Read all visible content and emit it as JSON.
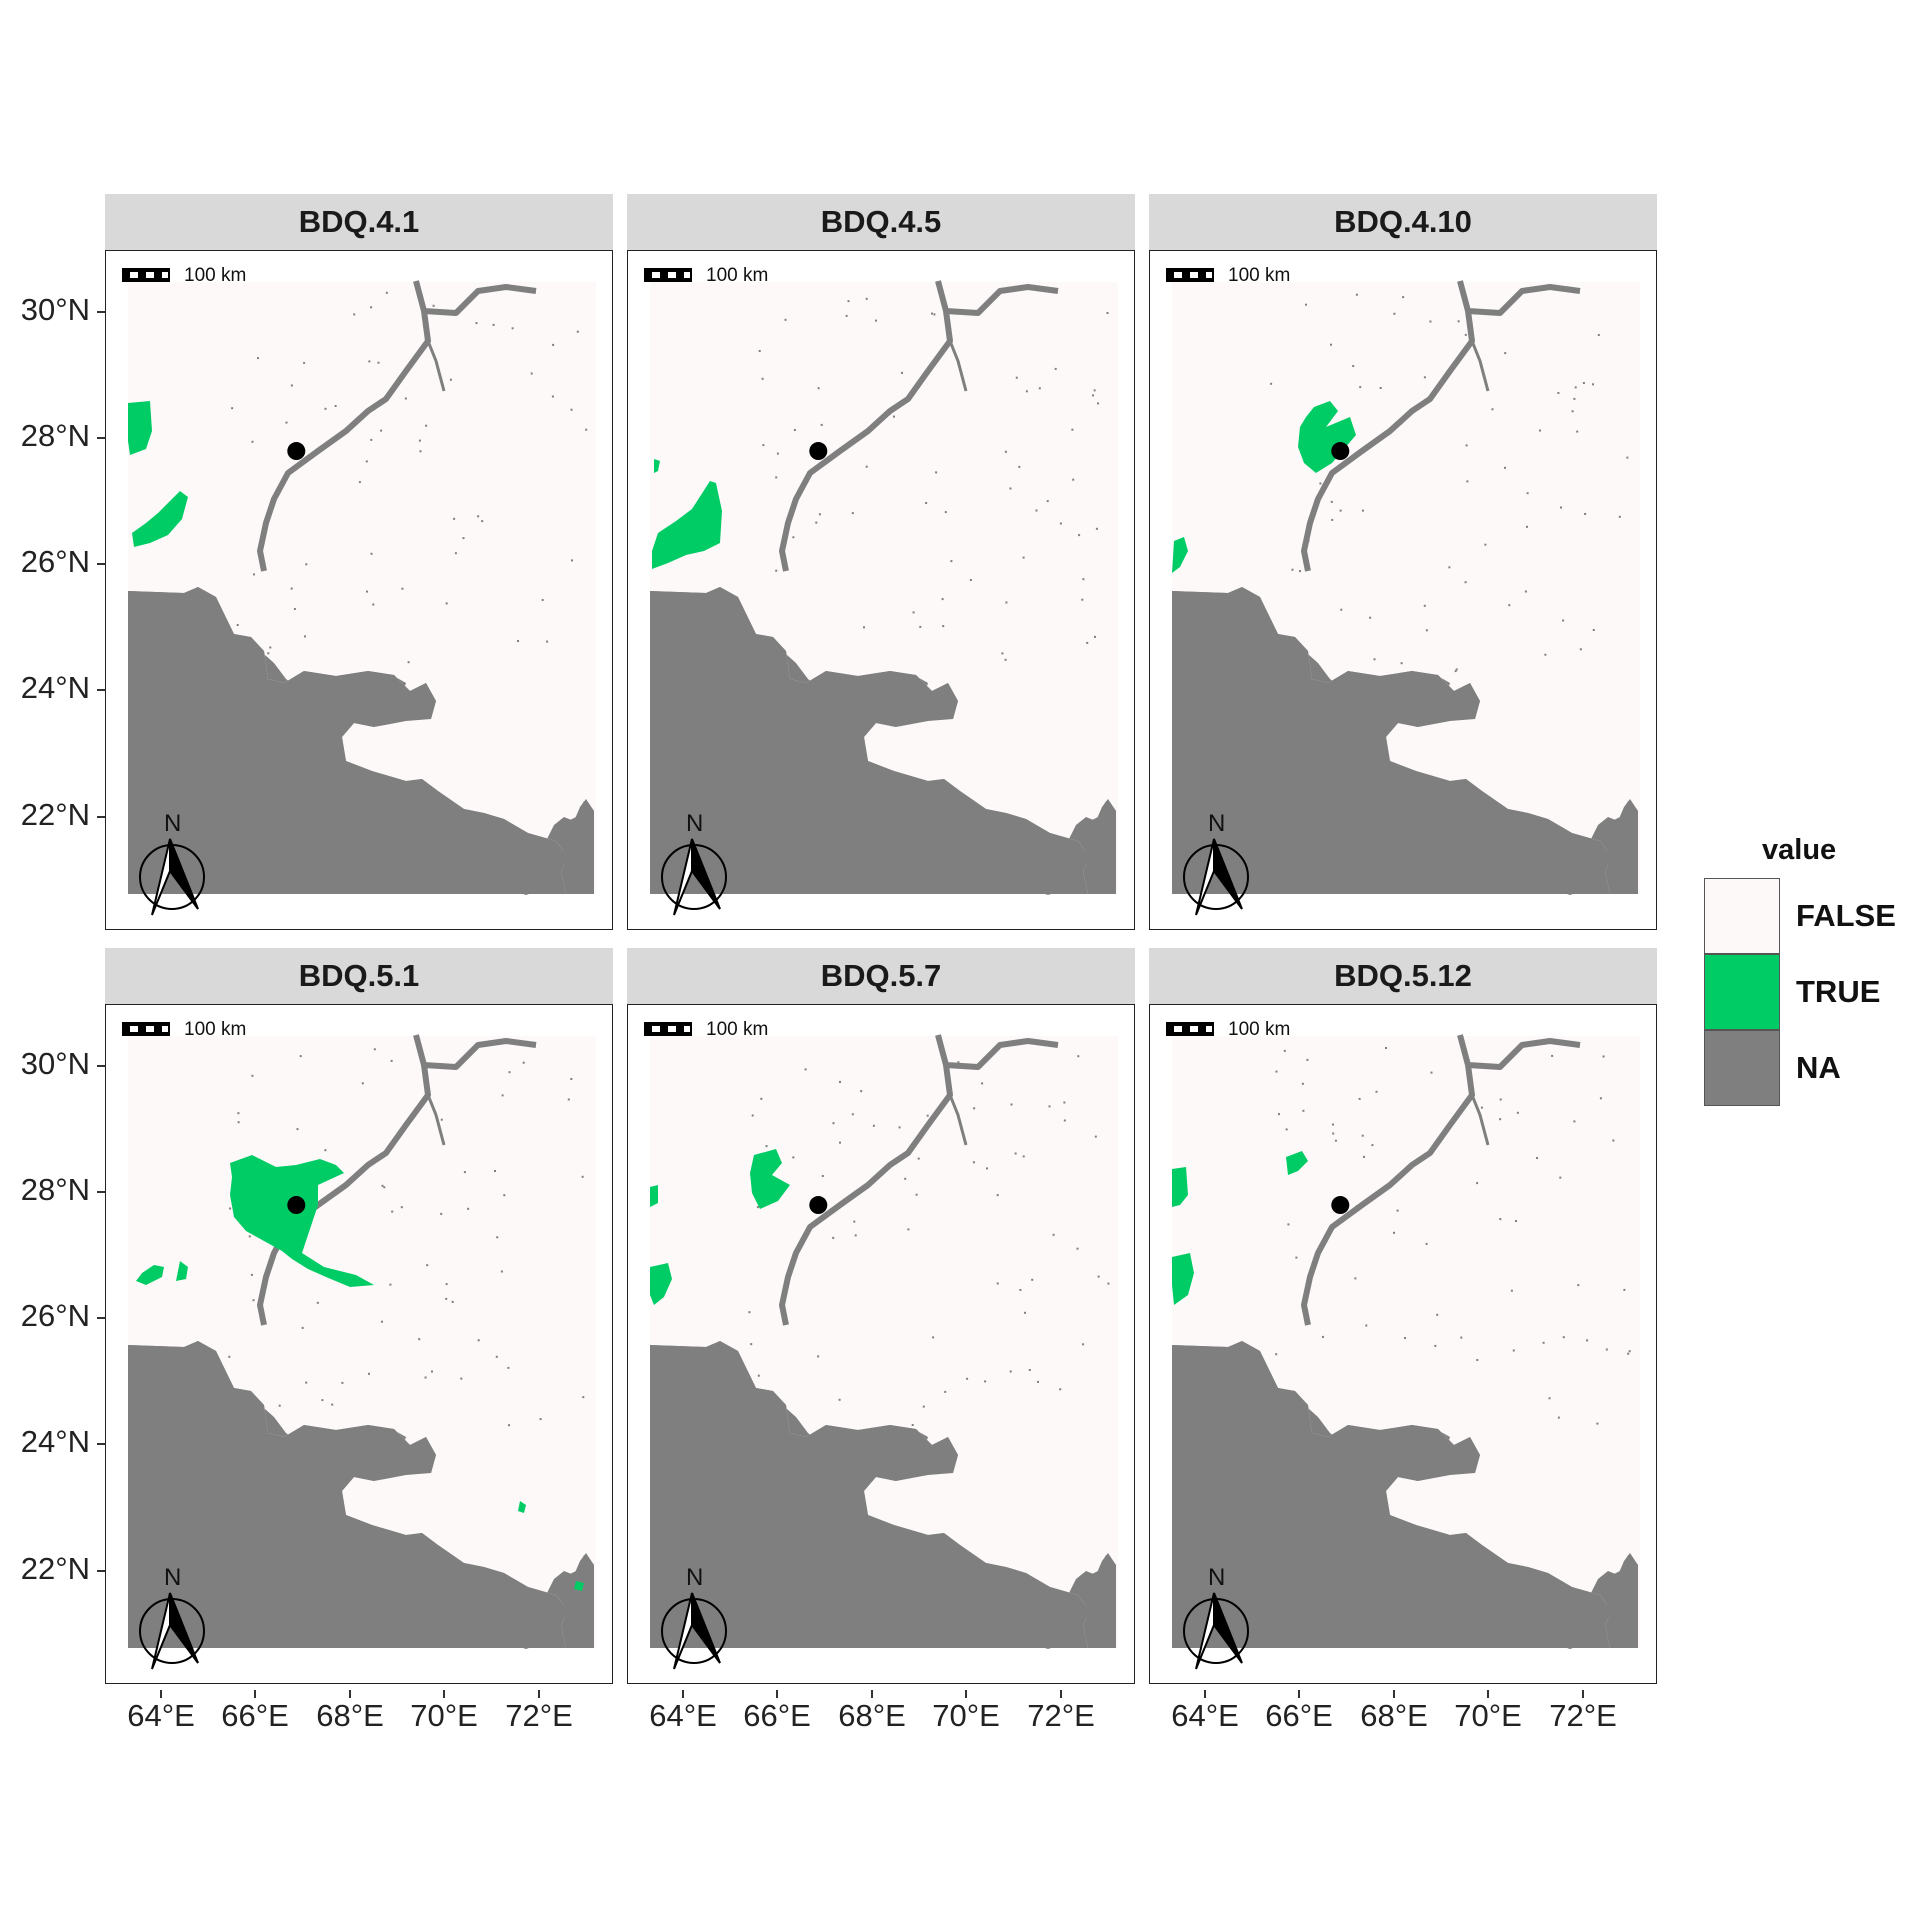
{
  "colors": {
    "false_fill": "#fcf9f8",
    "true_fill": "#00cc66",
    "na_fill": "#7f7f7f",
    "strip": "#d9d9d9"
  },
  "panels": [
    {
      "title": "BDQ.4.1"
    },
    {
      "title": "BDQ.4.5"
    },
    {
      "title": "BDQ.4.10"
    },
    {
      "title": "BDQ.5.1"
    },
    {
      "title": "BDQ.5.7"
    },
    {
      "title": "BDQ.5.12"
    }
  ],
  "scalebar_label": "100 km",
  "north_label": "N",
  "y_ticks": [
    "30°N",
    "28°N",
    "26°N",
    "24°N",
    "22°N"
  ],
  "x_ticks": [
    "64°E",
    "66°E",
    "68°E",
    "70°E",
    "72°E"
  ],
  "legend": {
    "title": "value",
    "items": [
      {
        "label": "FALSE",
        "color": "#fcf9f8"
      },
      {
        "label": "TRUE",
        "color": "#00cc66"
      },
      {
        "label": "NA",
        "color": "#7f7f7f"
      }
    ]
  },
  "marker": {
    "lon": 66.8,
    "lat": 27.8
  }
}
